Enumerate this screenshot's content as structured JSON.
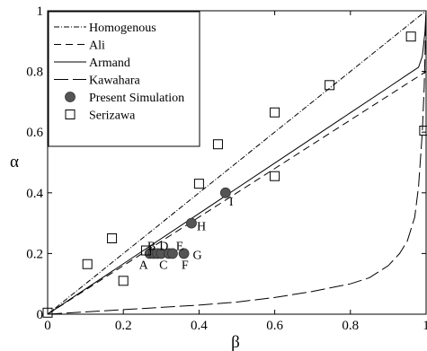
{
  "chart_data": {
    "type": "scatter",
    "xlabel": "β",
    "ylabel": "α",
    "xlim": [
      0,
      1
    ],
    "ylim": [
      0,
      1
    ],
    "xticks": [
      0,
      0.2,
      0.4,
      0.6,
      0.8,
      1
    ],
    "yticks": [
      0,
      0.2,
      0.4,
      0.6,
      0.8,
      1
    ],
    "xtick_labels": [
      "0",
      "0.2",
      "0.4",
      "0.6",
      "0.8",
      "1"
    ],
    "ytick_labels": [
      "0",
      "0.2",
      "0.4",
      "0.6",
      "0.8",
      "1"
    ],
    "grid": false,
    "legend_position": "top-left",
    "series": [
      {
        "name": "Homogenous",
        "kind": "line",
        "style": "dashdot",
        "x": [
          0,
          1
        ],
        "y": [
          0,
          1
        ]
      },
      {
        "name": "Ali",
        "kind": "line",
        "style": "dashed",
        "x": [
          0,
          0.2,
          0.4,
          0.6,
          0.8,
          1
        ],
        "y": [
          0,
          0.16,
          0.32,
          0.48,
          0.64,
          0.8
        ]
      },
      {
        "name": "Armand",
        "kind": "line",
        "style": "solid",
        "x": [
          0,
          0.2,
          0.4,
          0.6,
          0.8,
          0.9,
          0.95,
          0.98,
          0.99,
          0.997,
          1
        ],
        "y": [
          0,
          0.166,
          0.332,
          0.498,
          0.664,
          0.747,
          0.789,
          0.814,
          0.85,
          0.93,
          1
        ]
      },
      {
        "name": "Kawahara",
        "kind": "line",
        "style": "longdash",
        "x": [
          0,
          0.2,
          0.4,
          0.5,
          0.6,
          0.7,
          0.8,
          0.85,
          0.9,
          0.93,
          0.95,
          0.97,
          0.98,
          0.99,
          0.995,
          1
        ],
        "y": [
          0,
          0.015,
          0.03,
          0.04,
          0.055,
          0.075,
          0.1,
          0.12,
          0.16,
          0.2,
          0.24,
          0.32,
          0.42,
          0.6,
          0.75,
          1
        ]
      },
      {
        "name": "Present Simulation",
        "kind": "marker",
        "marker": "filled-circle",
        "color": "#555555",
        "points": [
          {
            "label": "A",
            "x": 0.27,
            "y": 0.2
          },
          {
            "label": "B",
            "x": 0.28,
            "y": 0.2
          },
          {
            "label": "C",
            "x": 0.29,
            "y": 0.2
          },
          {
            "label": "D",
            "x": 0.3,
            "y": 0.2
          },
          {
            "label": "E",
            "x": 0.32,
            "y": 0.2
          },
          {
            "label": "F",
            "x": 0.33,
            "y": 0.2
          },
          {
            "label": "G",
            "x": 0.36,
            "y": 0.2
          },
          {
            "label": "H",
            "x": 0.38,
            "y": 0.3
          },
          {
            "label": "I",
            "x": 0.47,
            "y": 0.4
          }
        ]
      },
      {
        "name": "Serizawa",
        "kind": "marker",
        "marker": "open-square",
        "points": [
          {
            "x": 0,
            "y": 0.005
          },
          {
            "x": 0.105,
            "y": 0.165
          },
          {
            "x": 0.17,
            "y": 0.25
          },
          {
            "x": 0.2,
            "y": 0.11
          },
          {
            "x": 0.26,
            "y": 0.21
          },
          {
            "x": 0.4,
            "y": 0.43
          },
          {
            "x": 0.45,
            "y": 0.56
          },
          {
            "x": 0.6,
            "y": 0.455
          },
          {
            "x": 0.6,
            "y": 0.665
          },
          {
            "x": 0.745,
            "y": 0.755
          },
          {
            "x": 0.96,
            "y": 0.915
          },
          {
            "x": 0.995,
            "y": 0.605
          }
        ]
      }
    ]
  }
}
